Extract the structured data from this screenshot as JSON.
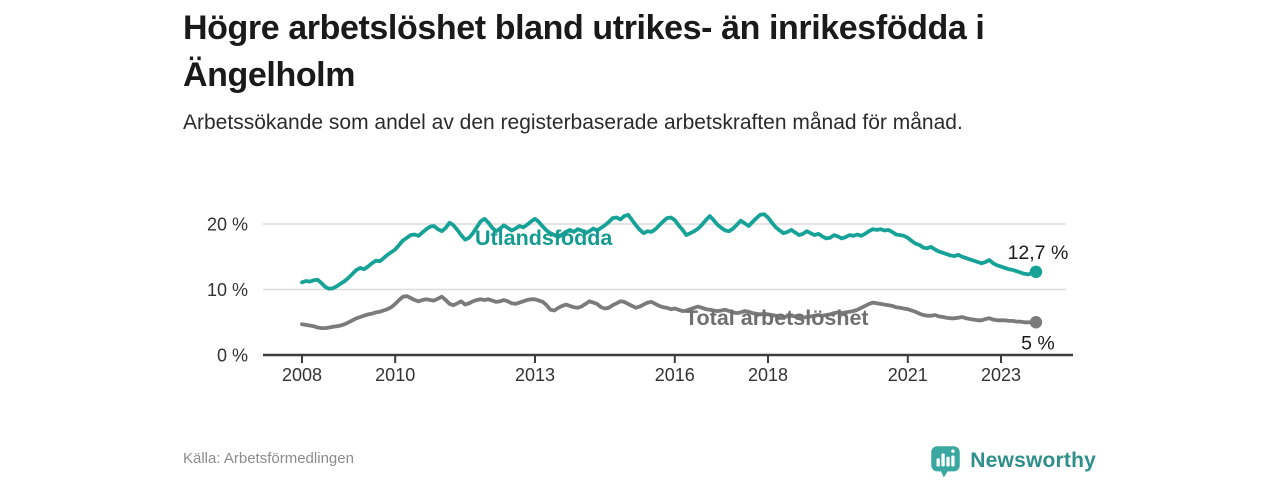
{
  "header": {
    "title": "Högre arbetslöshet bland utrikes- än inrikesfödda i Ängelholm",
    "subtitle": "Arbetssökande som andel av den registerbaserade arbetskraften månad för månad."
  },
  "footer": {
    "source": "Källa: Arbetsförmedlingen",
    "brand": "Newsworthy"
  },
  "icons": {
    "brand_icon": "newsworthy-speech-bubble-bar-chart-icon"
  },
  "colors": {
    "accent_teal": "#16a297",
    "line_gray": "#7b7b7b",
    "teal_label": "#149b91",
    "gray_label": "#6f6f6f",
    "grid": "#dcdcdc",
    "axis": "#3d3d3d",
    "tick_text": "#333333",
    "value_text": "#1a1a1a",
    "brand_icon_teal": "#3aa7a1"
  },
  "chart_data": {
    "type": "line",
    "title": "Högre arbetslöshet bland utrikes- än inrikesfödda i Ängelholm",
    "subtitle": "Arbetssökande som andel av den registerbaserade arbetskraften månad för månad.",
    "unit": "%",
    "x_start_year": 2008,
    "x_frequency": "monthly",
    "x_end": "2023-10",
    "ylim": [
      0,
      23
    ],
    "grid": "horizontal",
    "legend_position": "inline-labels",
    "y_ticks": [
      {
        "value": 0,
        "label": "0 %"
      },
      {
        "value": 10,
        "label": "10 %"
      },
      {
        "value": 20,
        "label": "20 %"
      }
    ],
    "x_ticks": [
      {
        "year": 2008,
        "label": "2008"
      },
      {
        "year": 2010,
        "label": "2010"
      },
      {
        "year": 2013,
        "label": "2013"
      },
      {
        "year": 2016,
        "label": "2016"
      },
      {
        "year": 2018,
        "label": "2018"
      },
      {
        "year": 2021,
        "label": "2021"
      },
      {
        "year": 2023,
        "label": "2023"
      }
    ],
    "series": [
      {
        "name": "Total arbetslöshet",
        "color": "#7b7b7b",
        "label_color": "#6f6f6f",
        "end_value": 5.0,
        "end_label": "5 %",
        "values": [
          4.7,
          4.6,
          4.5,
          4.4,
          4.2,
          4.1,
          4.1,
          4.2,
          4.3,
          4.4,
          4.5,
          4.7,
          5.0,
          5.3,
          5.6,
          5.8,
          6.0,
          6.2,
          6.3,
          6.5,
          6.6,
          6.8,
          7.0,
          7.3,
          7.8,
          8.4,
          8.9,
          9.0,
          8.7,
          8.4,
          8.2,
          8.4,
          8.5,
          8.4,
          8.3,
          8.6,
          8.9,
          8.4,
          7.8,
          7.6,
          7.9,
          8.2,
          7.7,
          7.9,
          8.2,
          8.4,
          8.5,
          8.4,
          8.5,
          8.3,
          8.1,
          8.2,
          8.4,
          8.2,
          7.9,
          7.8,
          8.0,
          8.2,
          8.4,
          8.5,
          8.5,
          8.3,
          8.1,
          7.6,
          6.9,
          6.8,
          7.2,
          7.5,
          7.7,
          7.5,
          7.3,
          7.2,
          7.4,
          7.8,
          8.2,
          8.0,
          7.8,
          7.3,
          7.1,
          7.2,
          7.6,
          7.9,
          8.2,
          8.1,
          7.8,
          7.5,
          7.2,
          7.4,
          7.7,
          8.0,
          8.1,
          7.8,
          7.5,
          7.3,
          7.2,
          7.0,
          7.1,
          6.9,
          6.7,
          6.8,
          7.0,
          7.2,
          7.4,
          7.2,
          7.0,
          6.9,
          6.8,
          6.7,
          6.8,
          6.9,
          6.7,
          6.5,
          6.4,
          6.5,
          6.7,
          6.6,
          6.4,
          6.3,
          6.2,
          6.3,
          6.2,
          6.1,
          6.0,
          5.9,
          5.8,
          5.9,
          6.0,
          5.9,
          5.8,
          5.7,
          5.8,
          5.9,
          6.0,
          6.1,
          6.0,
          6.1,
          6.2,
          6.4,
          6.5,
          6.4,
          6.5,
          6.6,
          6.7,
          6.9,
          7.2,
          7.5,
          7.8,
          8.0,
          7.9,
          7.8,
          7.7,
          7.6,
          7.5,
          7.3,
          7.2,
          7.1,
          7.0,
          6.8,
          6.6,
          6.3,
          6.1,
          6.0,
          6.0,
          6.1,
          5.9,
          5.8,
          5.7,
          5.6,
          5.6,
          5.7,
          5.8,
          5.6,
          5.5,
          5.4,
          5.3,
          5.3,
          5.5,
          5.6,
          5.4,
          5.3,
          5.3,
          5.3,
          5.2,
          5.2,
          5.1,
          5.1,
          5.0,
          5.0,
          5.0,
          5.0
        ]
      },
      {
        "name": "Utlandsfödda",
        "color": "#16a297",
        "label_color": "#149b91",
        "end_value": 12.7,
        "end_label": "12,7 %",
        "values": [
          11.1,
          11.3,
          11.2,
          11.4,
          11.5,
          11.0,
          10.4,
          10.1,
          10.2,
          10.5,
          10.9,
          11.3,
          11.8,
          12.4,
          13.0,
          13.3,
          13.1,
          13.5,
          14.0,
          14.4,
          14.3,
          14.8,
          15.3,
          15.7,
          16.1,
          16.8,
          17.5,
          17.9,
          18.3,
          18.4,
          18.2,
          18.7,
          19.2,
          19.6,
          19.7,
          19.2,
          18.9,
          19.4,
          20.2,
          19.8,
          19.1,
          18.3,
          17.6,
          17.9,
          18.6,
          19.5,
          20.4,
          20.8,
          20.2,
          19.4,
          18.9,
          19.3,
          19.8,
          19.4,
          19.0,
          19.3,
          19.7,
          19.5,
          19.9,
          20.4,
          20.8,
          20.3,
          19.6,
          19.0,
          18.6,
          18.3,
          18.0,
          18.4,
          18.8,
          19.1,
          18.8,
          19.2,
          19.0,
          18.6,
          18.9,
          19.3,
          19.0,
          19.4,
          19.8,
          20.3,
          20.9,
          21.0,
          20.7,
          21.2,
          21.4,
          20.6,
          19.8,
          19.1,
          18.6,
          18.9,
          18.8,
          19.2,
          19.8,
          20.4,
          20.9,
          21.0,
          20.6,
          19.8,
          19.1,
          18.3,
          18.6,
          18.9,
          19.3,
          19.9,
          20.6,
          21.2,
          20.6,
          19.9,
          19.4,
          19.0,
          18.9,
          19.3,
          19.9,
          20.5,
          20.1,
          19.7,
          20.3,
          20.9,
          21.4,
          21.5,
          21.0,
          20.2,
          19.5,
          19.0,
          18.6,
          18.8,
          19.1,
          18.7,
          18.3,
          18.5,
          18.9,
          18.6,
          18.3,
          18.5,
          18.1,
          17.8,
          17.9,
          18.3,
          18.1,
          17.8,
          18.0,
          18.3,
          18.2,
          18.4,
          18.2,
          18.5,
          18.9,
          19.2,
          19.1,
          19.2,
          19.0,
          19.1,
          18.8,
          18.4,
          18.3,
          18.2,
          17.9,
          17.4,
          17.0,
          16.8,
          16.4,
          16.3,
          16.5,
          16.1,
          15.8,
          15.6,
          15.4,
          15.2,
          15.1,
          15.3,
          15.0,
          14.8,
          14.6,
          14.4,
          14.2,
          14.0,
          14.2,
          14.5,
          14.0,
          13.7,
          13.5,
          13.3,
          13.1,
          13.0,
          12.8,
          12.6,
          12.4,
          12.3,
          12.5,
          12.7
        ]
      }
    ]
  }
}
